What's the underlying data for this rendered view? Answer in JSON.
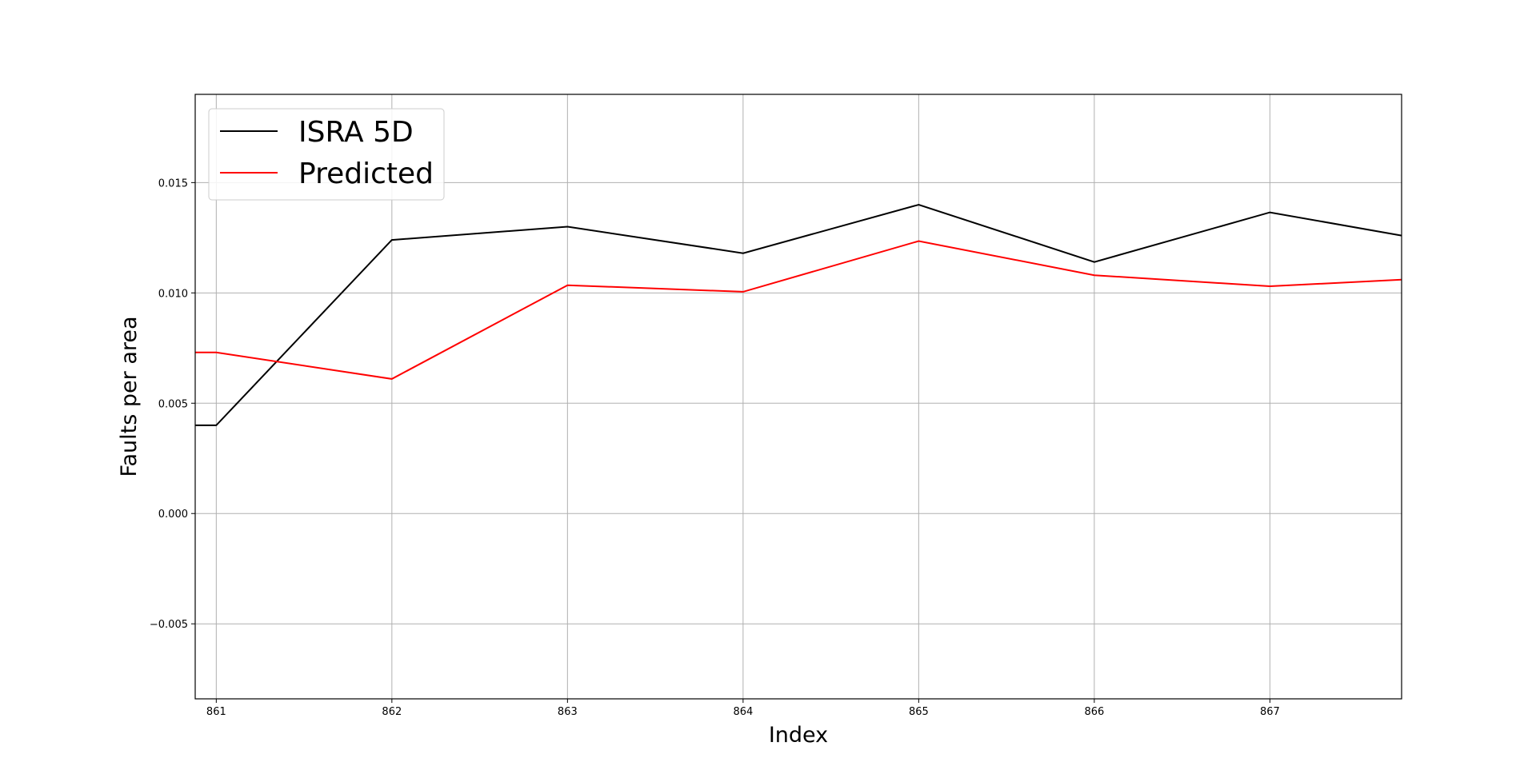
{
  "chart_data": {
    "type": "line",
    "title": "",
    "xlabel": "Index",
    "ylabel": "Faults per area",
    "xlim": [
      860.88,
      867.75
    ],
    "ylim": [
      -0.0084,
      0.019
    ],
    "x_ticks": [
      "861",
      "862",
      "863",
      "864",
      "865",
      "866",
      "867"
    ],
    "y_ticks": [
      "−0.005",
      "0.000",
      "0.005",
      "0.010",
      "0.015"
    ],
    "x_tick_values": [
      861,
      862,
      863,
      864,
      865,
      866,
      867
    ],
    "y_tick_values": [
      -0.005,
      0.0,
      0.005,
      0.01,
      0.015
    ],
    "grid": true,
    "legend": {
      "position": "top-left"
    },
    "series": [
      {
        "name": "ISRA 5D",
        "color": "#000000",
        "x": [
          860.88,
          861,
          862,
          863,
          864,
          865,
          866,
          867,
          867.75
        ],
        "y": [
          0.004,
          0.004,
          0.0124,
          0.013,
          0.0118,
          0.014,
          0.0114,
          0.01365,
          0.0126
        ]
      },
      {
        "name": "Predicted",
        "color": "#ff0000",
        "x": [
          860.88,
          861,
          862,
          863,
          864,
          865,
          866,
          867,
          867.75
        ],
        "y": [
          0.0073,
          0.0073,
          0.0061,
          0.01035,
          0.01005,
          0.01235,
          0.0108,
          0.0103,
          0.0106
        ]
      }
    ]
  }
}
